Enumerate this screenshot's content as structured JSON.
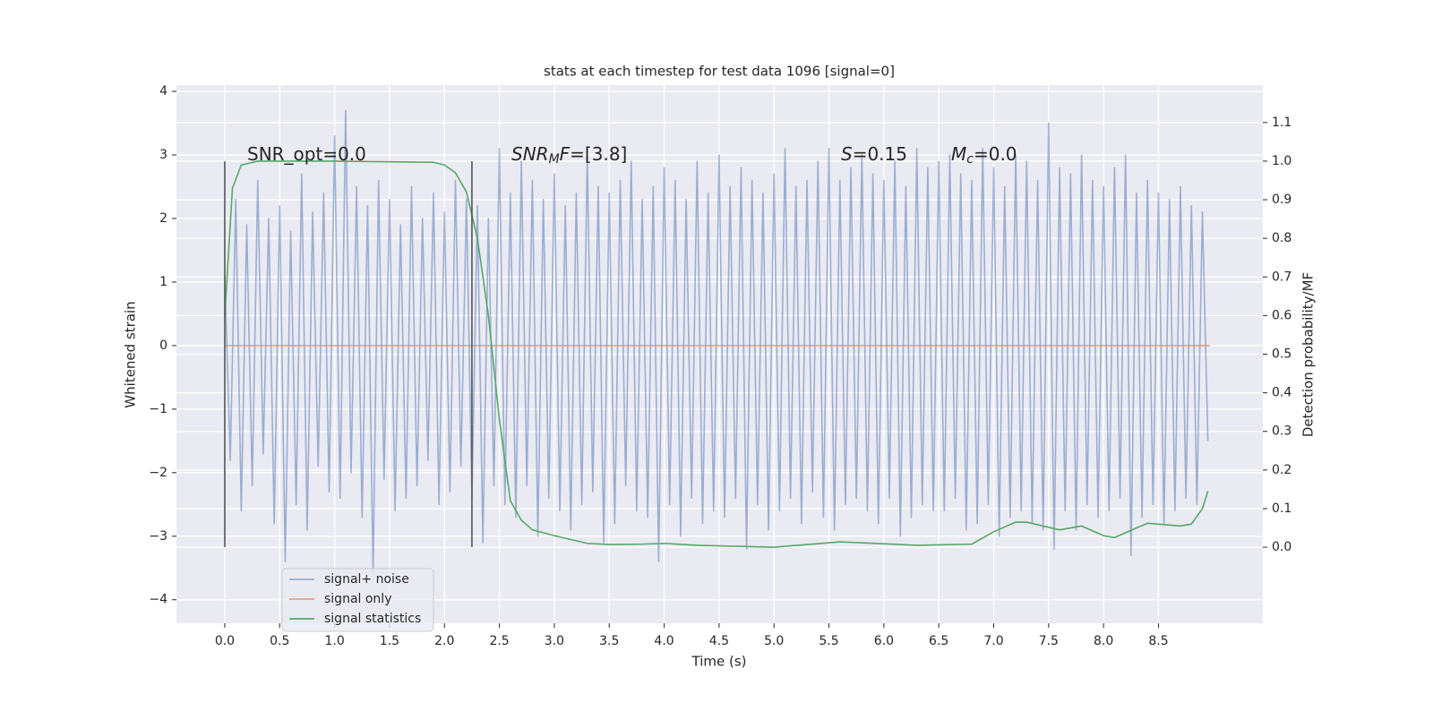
{
  "chart_data": {
    "type": "line",
    "title": "stats at each timestep for test data 1096 [signal=0]",
    "xlabel": "Time (s)",
    "ylabel": "Whitened strain",
    "y2label": "Detection probability/MF",
    "xlim": [
      -0.44,
      9.45
    ],
    "ylim": [
      -4.37,
      4.1
    ],
    "y2lim": [
      -0.197,
      1.197
    ],
    "xticks": [
      {
        "value": 0,
        "label": "0.0"
      },
      0.5,
      {
        "value": 1,
        "label": "1.0"
      },
      1.5,
      {
        "value": 2,
        "label": "2.0"
      },
      2.5,
      {
        "value": 3,
        "label": "3.0"
      },
      3.5,
      {
        "value": 4,
        "label": "4.0"
      },
      4.5,
      {
        "value": 5,
        "label": "5.0"
      },
      5.5,
      {
        "value": 6,
        "label": "6.0"
      },
      6.5,
      {
        "value": 7,
        "label": "7.0"
      },
      7.5,
      {
        "value": 8,
        "label": "8.0"
      },
      8.5
    ],
    "yticks": [
      {
        "value": -4,
        "label": "−4"
      },
      {
        "value": -3,
        "label": "−3"
      },
      {
        "value": -2,
        "label": "−2"
      },
      {
        "value": -1,
        "label": "−1"
      },
      0,
      1,
      2,
      3,
      4
    ],
    "y2ticks": [
      {
        "value": 0,
        "label": "0.0"
      },
      0.1,
      0.2,
      0.3,
      0.4,
      0.5,
      0.6,
      0.7,
      0.8,
      0.9,
      {
        "value": 1,
        "label": "1.0"
      },
      1.1
    ],
    "grid": true,
    "legend": "lower left",
    "series": [
      {
        "name": "signal+ noise",
        "color": "#4c72b0",
        "alpha": 0.5,
        "x": [
          0,
          0.05,
          0.1,
          0.15,
          0.2,
          0.25,
          0.3,
          0.35,
          0.4,
          0.45,
          0.5,
          0.55,
          0.6,
          0.65,
          0.7,
          0.75,
          0.8,
          0.85,
          0.9,
          0.95,
          1,
          1.05,
          1.1,
          1.15,
          1.2,
          1.25,
          1.3,
          1.35,
          1.4,
          1.45,
          1.5,
          1.55,
          1.6,
          1.65,
          1.7,
          1.75,
          1.8,
          1.85,
          1.9,
          1.95,
          2,
          2.05,
          2.1,
          2.15,
          2.2,
          2.25,
          2.3,
          2.35,
          2.4,
          2.45,
          2.5,
          2.55,
          2.6,
          2.65,
          2.7,
          2.75,
          2.8,
          2.85,
          2.9,
          2.95,
          3,
          3.05,
          3.1,
          3.15,
          3.2,
          3.25,
          3.3,
          3.35,
          3.4,
          3.45,
          3.5,
          3.55,
          3.6,
          3.65,
          3.7,
          3.75,
          3.8,
          3.85,
          3.9,
          3.95,
          4,
          4.05,
          4.1,
          4.15,
          4.2,
          4.25,
          4.3,
          4.35,
          4.4,
          4.45,
          4.5,
          4.55,
          4.6,
          4.65,
          4.7,
          4.75,
          4.8,
          4.85,
          4.9,
          4.95,
          5,
          5.05,
          5.1,
          5.15,
          5.2,
          5.25,
          5.3,
          5.35,
          5.4,
          5.45,
          5.5,
          5.55,
          5.6,
          5.65,
          5.7,
          5.75,
          5.8,
          5.85,
          5.9,
          5.95,
          6,
          6.05,
          6.1,
          6.15,
          6.2,
          6.25,
          6.3,
          6.35,
          6.4,
          6.45,
          6.5,
          6.55,
          6.6,
          6.65,
          6.7,
          6.75,
          6.8,
          6.85,
          6.9,
          6.95,
          7,
          7.05,
          7.1,
          7.15,
          7.2,
          7.25,
          7.3,
          7.35,
          7.4,
          7.45,
          7.5,
          7.55,
          7.6,
          7.65,
          7.7,
          7.75,
          7.8,
          7.85,
          7.9,
          7.95,
          8,
          8.05,
          8.1,
          8.15,
          8.2,
          8.25,
          8.3,
          8.35,
          8.4,
          8.45,
          8.5,
          8.55,
          8.6,
          8.65,
          8.7,
          8.75,
          8.8,
          8.85,
          8.9,
          8.95
        ],
        "values": [
          1.1,
          -1.8,
          2.3,
          -2.6,
          1.9,
          -2.2,
          2.6,
          -1.7,
          2.0,
          -2.8,
          2.2,
          -3.4,
          1.8,
          -2.5,
          2.7,
          -2.9,
          2.1,
          -1.9,
          2.4,
          -2.3,
          3.3,
          -2.4,
          3.7,
          -2.0,
          2.5,
          -2.7,
          2.2,
          -3.6,
          2.6,
          -2.1,
          2.3,
          -2.6,
          1.9,
          -2.4,
          2.5,
          -2.2,
          2.0,
          -1.8,
          2.4,
          -2.5,
          2.1,
          -2.3,
          2.6,
          -1.9,
          2.3,
          -2.4,
          2.2,
          -3.1,
          2.0,
          -2.2,
          3.1,
          -2.5,
          2.4,
          -2.7,
          2.9,
          -2.2,
          2.6,
          -3.0,
          2.3,
          -2.4,
          2.7,
          -2.6,
          2.2,
          -2.9,
          2.4,
          -2.5,
          3.0,
          -2.3,
          2.5,
          -3.1,
          2.4,
          -2.8,
          2.6,
          -2.2,
          2.9,
          -2.6,
          2.3,
          -2.7,
          2.5,
          -3.4,
          2.8,
          -2.5,
          2.6,
          -3.0,
          2.3,
          -2.4,
          2.9,
          -2.8,
          2.4,
          -2.6,
          3.0,
          -2.7,
          2.5,
          -2.4,
          2.8,
          -3.2,
          2.6,
          -2.5,
          2.4,
          -2.9,
          2.7,
          -2.6,
          3.1,
          -2.4,
          2.5,
          -2.8,
          2.6,
          -2.3,
          2.9,
          -2.7,
          3.1,
          -2.9,
          2.6,
          -2.5,
          2.8,
          -2.4,
          3.0,
          -2.6,
          2.7,
          -2.8,
          2.6,
          -2.4,
          2.9,
          -3.0,
          2.5,
          -2.7,
          3.1,
          -2.5,
          2.8,
          -2.6,
          2.9,
          -2.6,
          3.0,
          -2.4,
          2.7,
          -2.9,
          2.6,
          -2.8,
          3.1,
          -2.5,
          2.8,
          -3.0,
          2.5,
          -2.7,
          3.0,
          -2.6,
          2.9,
          -2.8,
          2.6,
          -2.9,
          3.5,
          -3.2,
          2.8,
          -2.6,
          2.7,
          -2.9,
          3.0,
          -2.5,
          2.6,
          -2.7,
          2.5,
          -2.6,
          2.8,
          -2.4,
          3.0,
          -3.3,
          2.4,
          -2.7,
          2.6,
          -2.5,
          2.4,
          -2.8,
          2.3,
          -2.6,
          2.5,
          -2.4,
          2.2,
          -2.5,
          2.1,
          -1.5
        ]
      },
      {
        "name": "signal only",
        "color": "#dd8452",
        "alpha": 0.7,
        "x": [
          0,
          8.97
        ],
        "values": [
          0,
          0
        ]
      },
      {
        "name": "signal statistics",
        "color": "#55a868",
        "alpha": 1,
        "axis": "y2",
        "x": [
          0,
          0.07,
          0.15,
          0.3,
          1.0,
          1.9,
          2.0,
          2.1,
          2.2,
          2.3,
          2.4,
          2.5,
          2.6,
          2.7,
          2.8,
          3.0,
          3.3,
          3.5,
          3.8,
          4.0,
          4.3,
          5.0,
          5.6,
          6.3,
          6.8,
          7.0,
          7.2,
          7.3,
          7.6,
          7.8,
          8.0,
          8.1,
          8.3,
          8.4,
          8.7,
          8.8,
          8.9,
          8.95
        ],
        "values": [
          0.6,
          0.93,
          0.99,
          1.0,
          1.0,
          0.997,
          0.99,
          0.97,
          0.92,
          0.8,
          0.6,
          0.33,
          0.12,
          0.07,
          0.045,
          0.03,
          0.01,
          0.007,
          0.008,
          0.01,
          0.005,
          0.0,
          0.014,
          0.005,
          0.008,
          0.04,
          0.065,
          0.065,
          0.045,
          0.055,
          0.03,
          0.025,
          0.05,
          0.062,
          0.055,
          0.06,
          0.1,
          0.145
        ]
      }
    ],
    "vlines": [
      {
        "x": 0,
        "ymin": -3.17,
        "ymax": 2.9,
        "color": "#555555"
      },
      {
        "x": 2.25,
        "ymin": -3.17,
        "ymax": 2.9,
        "color": "#555555"
      }
    ],
    "annotations": [
      [
        {
          "text": "SNR_opt=0.0"
        }
      ],
      [
        {
          "text": "SNR",
          "italic": true
        },
        {
          "text": "M",
          "italic": true,
          "sub": true
        },
        {
          "text": "F",
          "italic": true
        },
        {
          "text": "=[3.8]"
        }
      ],
      [
        {
          "text": "S",
          "italic": true
        },
        {
          "text": "=0.15"
        }
      ],
      [
        {
          "text": "M",
          "italic": true
        },
        {
          "text": "c",
          "italic": true,
          "sub": true
        },
        {
          "text": "=0.0"
        }
      ]
    ]
  }
}
